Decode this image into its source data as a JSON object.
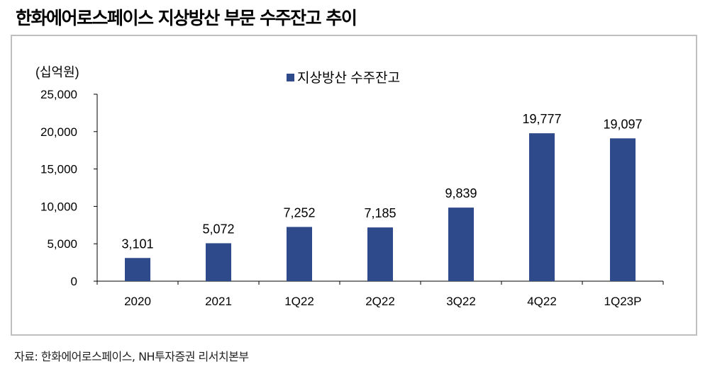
{
  "title": "한화에어로스페이스 지상방산 부문 수주잔고 추이",
  "source": "자료:  한화에어로스페이스, NH투자증권  리서치본부",
  "chart_data": {
    "type": "bar",
    "unit_label": "(십억원)",
    "categories": [
      "2020",
      "2021",
      "1Q22",
      "2Q22",
      "3Q22",
      "4Q22",
      "1Q23P"
    ],
    "series": [
      {
        "name": "지상방산 수주잔고",
        "color": "#2e4a8b",
        "values": [
          3101,
          5072,
          7252,
          7185,
          9839,
          19777,
          19097
        ]
      }
    ],
    "data_labels": [
      "3,101",
      "5,072",
      "7,252",
      "7,185",
      "9,839",
      "19,777",
      "19,097"
    ],
    "yticks": [
      0,
      5000,
      10000,
      15000,
      20000,
      25000
    ],
    "ytick_labels": [
      "0",
      "5,000",
      "10,000",
      "15,000",
      "20,000",
      "25,000"
    ],
    "ylim": [
      0,
      25000
    ],
    "grid": false,
    "legend_position": "top-center"
  }
}
